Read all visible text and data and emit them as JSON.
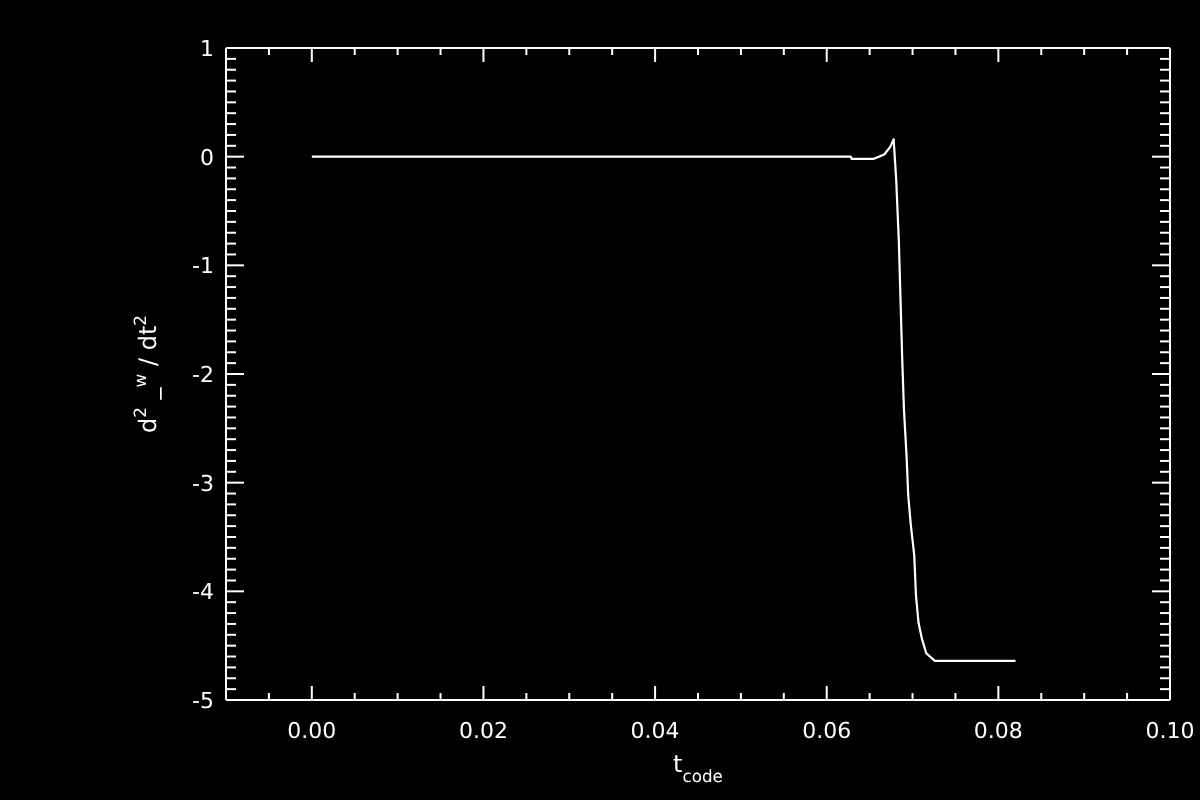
{
  "chart_data": {
    "type": "line",
    "xlabel": "t$_{code}$",
    "ylabel": "d$^{2}$ _$^{w}$ / dt$^{2}$",
    "xlim": [
      -0.01,
      0.1
    ],
    "ylim": [
      -5,
      1
    ],
    "xticks": [
      {
        "value": -0.005,
        "label": null
      },
      {
        "value": 0,
        "label": "0.00"
      },
      {
        "value": 0.005,
        "label": null
      },
      {
        "value": 0.01,
        "label": null
      },
      {
        "value": 0.015,
        "label": null
      },
      {
        "value": 0.02,
        "label": "0.02"
      },
      {
        "value": 0.025,
        "label": null
      },
      {
        "value": 0.03,
        "label": null
      },
      {
        "value": 0.035,
        "label": null
      },
      {
        "value": 0.04,
        "label": "0.04"
      },
      {
        "value": 0.045,
        "label": null
      },
      {
        "value": 0.05,
        "label": null
      },
      {
        "value": 0.055,
        "label": null
      },
      {
        "value": 0.06,
        "label": "0.06"
      },
      {
        "value": 0.065,
        "label": null
      },
      {
        "value": 0.07,
        "label": null
      },
      {
        "value": 0.075,
        "label": null
      },
      {
        "value": 0.08,
        "label": "0.08"
      },
      {
        "value": 0.085,
        "label": null
      },
      {
        "value": 0.09,
        "label": null
      },
      {
        "value": 0.095,
        "label": null
      },
      {
        "value": 0.1,
        "label": "0.10"
      }
    ],
    "yticks": [
      -5,
      {
        "value": -4.9,
        "label": null
      },
      {
        "value": -4.8,
        "label": null
      },
      {
        "value": -4.7,
        "label": null
      },
      {
        "value": -4.6,
        "label": null
      },
      {
        "value": -4.5,
        "label": null
      },
      {
        "value": -4.4,
        "label": null
      },
      {
        "value": -4.3,
        "label": null
      },
      {
        "value": -4.2,
        "label": null
      },
      {
        "value": -4.1,
        "label": null
      },
      -4,
      {
        "value": -3.9,
        "label": null
      },
      {
        "value": -3.8,
        "label": null
      },
      {
        "value": -3.7,
        "label": null
      },
      {
        "value": -3.6,
        "label": null
      },
      {
        "value": -3.5,
        "label": null
      },
      {
        "value": -3.4,
        "label": null
      },
      {
        "value": -3.3,
        "label": null
      },
      {
        "value": -3.2,
        "label": null
      },
      {
        "value": -3.1,
        "label": null
      },
      -3,
      {
        "value": -2.9,
        "label": null
      },
      {
        "value": -2.8,
        "label": null
      },
      {
        "value": -2.7,
        "label": null
      },
      {
        "value": -2.6,
        "label": null
      },
      {
        "value": -2.5,
        "label": null
      },
      {
        "value": -2.4,
        "label": null
      },
      {
        "value": -2.3,
        "label": null
      },
      {
        "value": -2.2,
        "label": null
      },
      {
        "value": -2.1,
        "label": null
      },
      -2,
      {
        "value": -1.9,
        "label": null
      },
      {
        "value": -1.8,
        "label": null
      },
      {
        "value": -1.7,
        "label": null
      },
      {
        "value": -1.6,
        "label": null
      },
      {
        "value": -1.5,
        "label": null
      },
      {
        "value": -1.4,
        "label": null
      },
      {
        "value": -1.3,
        "label": null
      },
      {
        "value": -1.2,
        "label": null
      },
      {
        "value": -1.1,
        "label": null
      },
      -1,
      {
        "value": -0.9,
        "label": null
      },
      {
        "value": -0.8,
        "label": null
      },
      {
        "value": -0.7,
        "label": null
      },
      {
        "value": -0.6,
        "label": null
      },
      {
        "value": -0.5,
        "label": null
      },
      {
        "value": -0.4,
        "label": null
      },
      {
        "value": -0.3,
        "label": null
      },
      {
        "value": -0.2,
        "label": null
      },
      {
        "value": -0.1,
        "label": null
      },
      0,
      {
        "value": 0.1,
        "label": null
      },
      {
        "value": 0.2,
        "label": null
      },
      {
        "value": 0.3,
        "label": null
      },
      {
        "value": 0.4,
        "label": null
      },
      {
        "value": 0.5,
        "label": null
      },
      {
        "value": 0.6,
        "label": null
      },
      {
        "value": 0.7,
        "label": null
      },
      {
        "value": 0.8,
        "label": null
      },
      {
        "value": 0.9,
        "label": null
      },
      1
    ],
    "marker": "none",
    "x": [
      0,
      0.0628,
      0.0629,
      0.0655,
      0.0667,
      0.0674,
      0.0678,
      0.0681,
      0.0684,
      0.0686,
      0.0688,
      0.069,
      0.0693,
      0.0695,
      0.0698,
      0.0702,
      0.0704,
      0.0707,
      0.0711,
      0.0716,
      0.0726,
      0.082
    ],
    "series": [
      {
        "color": "#ffffff",
        "values": [
          0,
          0,
          -0.02,
          -0.02,
          0.02,
          0.09,
          0.16,
          -0.22,
          -0.77,
          -1.32,
          -1.87,
          -2.33,
          -2.75,
          -3.12,
          -3.39,
          -3.67,
          -4.04,
          -4.29,
          -4.44,
          -4.57,
          -4.64,
          -4.64
        ]
      }
    ]
  }
}
